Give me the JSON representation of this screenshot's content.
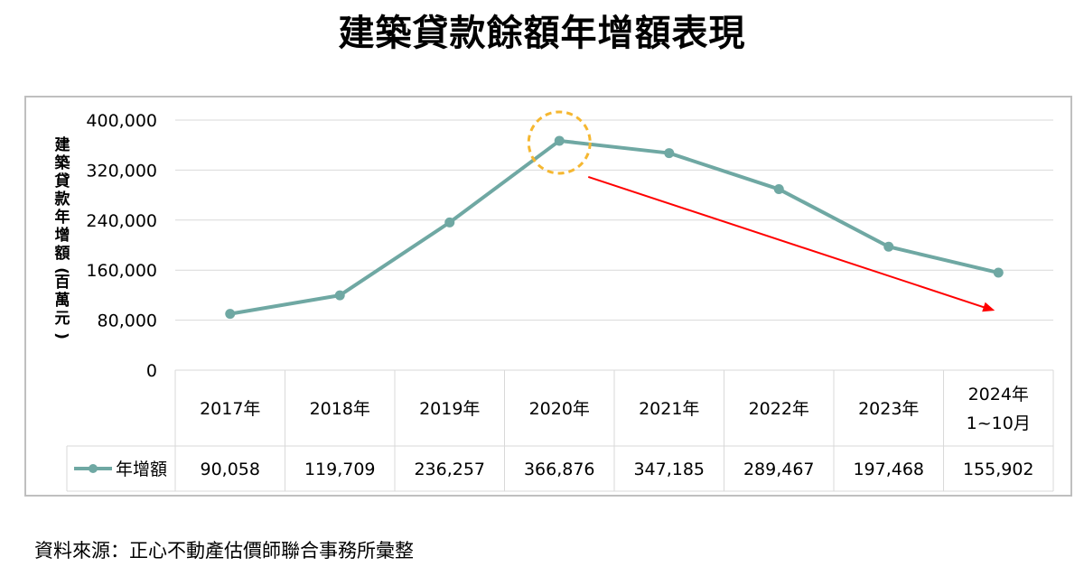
{
  "title": "建築貸款餘額年增額表現",
  "source": "資料來源：正心不動產估價師聯合事務所彙整",
  "colors": {
    "line": "#6fa8a3",
    "grid": "#d9d9d9",
    "arrow": "#ff0000",
    "highlight": "#f5b731"
  },
  "chart_data": {
    "type": "line",
    "ylabel": "建築貸款年增額(百萬元)",
    "ylim": [
      0,
      400000
    ],
    "yticks": [
      "0",
      "80,000",
      "160,000",
      "240,000",
      "320,000",
      "400,000"
    ],
    "categories": [
      "2017年",
      "2018年",
      "2019年",
      "2020年",
      "2021年",
      "2022年",
      "2023年",
      "2024年 1~10月"
    ],
    "category_lines": [
      [
        "2017年"
      ],
      [
        "2018年"
      ],
      [
        "2019年"
      ],
      [
        "2020年"
      ],
      [
        "2021年"
      ],
      [
        "2022年"
      ],
      [
        "2023年"
      ],
      [
        "2024年",
        "1~10月"
      ]
    ],
    "series": [
      {
        "name": "年增額",
        "values": [
          90058,
          119709,
          236257,
          366876,
          347185,
          289467,
          197468,
          155902
        ],
        "value_labels": [
          "90,058",
          "119,709",
          "236,257",
          "366,876",
          "347,185",
          "289,467",
          "197,468",
          "155,902"
        ]
      }
    ],
    "data_table": true,
    "grid": true,
    "annotations": [
      {
        "type": "circle-highlight",
        "category": "2020年"
      },
      {
        "type": "trend-arrow",
        "from": "2020年",
        "to": "2024年 1~10月",
        "direction": "down"
      }
    ]
  }
}
